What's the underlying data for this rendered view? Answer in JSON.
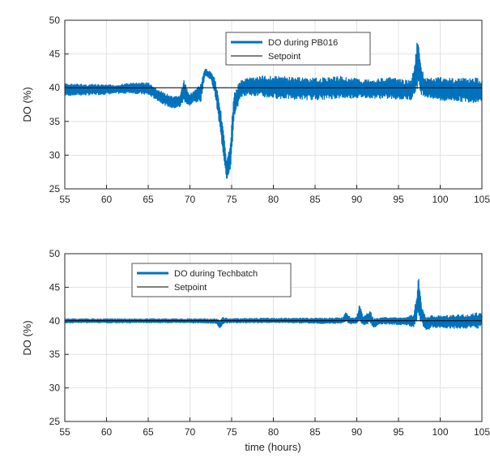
{
  "chart_data": [
    {
      "type": "line",
      "xlim": [
        55,
        105
      ],
      "ylim": [
        25,
        50
      ],
      "xticks": [
        55,
        60,
        65,
        70,
        75,
        80,
        85,
        90,
        95,
        100,
        105
      ],
      "yticks": [
        25,
        30,
        35,
        40,
        45,
        50
      ],
      "xlabel": "",
      "ylabel": "DO (%)",
      "grid": true,
      "legend_position": "top-center",
      "series": [
        {
          "name": "DO during PB016",
          "color": "#0072BD",
          "band": [
            [
              55,
              38.8,
              40.6
            ],
            [
              58,
              38.9,
              40.5
            ],
            [
              61,
              39.1,
              40.4
            ],
            [
              63,
              39.2,
              40.7
            ],
            [
              65,
              38.9,
              40.8
            ],
            [
              66,
              38.2,
              39.8
            ],
            [
              67,
              37.4,
              39.2
            ],
            [
              68,
              36.9,
              38.6
            ],
            [
              68.8,
              37.1,
              38.9
            ],
            [
              69.3,
              38.0,
              41.2
            ],
            [
              69.8,
              37.2,
              39.2
            ],
            [
              70.5,
              37.8,
              39.5
            ],
            [
              71.3,
              37.9,
              40.6
            ],
            [
              71.8,
              41.8,
              42.8
            ],
            [
              72.5,
              41.2,
              42.4
            ],
            [
              73.0,
              39.0,
              41.5
            ],
            [
              73.5,
              34.5,
              38.5
            ],
            [
              74.0,
              30.0,
              34.0
            ],
            [
              74.4,
              26.4,
              29.0
            ],
            [
              74.8,
              27.0,
              31.5
            ],
            [
              75.3,
              35.0,
              39.5
            ],
            [
              76.0,
              38.5,
              41.0
            ],
            [
              77,
              39.0,
              41.5
            ],
            [
              79,
              38.5,
              41.8
            ],
            [
              82,
              38.3,
              41.6
            ],
            [
              85,
              38.2,
              41.4
            ],
            [
              88,
              38.4,
              41.7
            ],
            [
              91,
              38.5,
              41.2
            ],
            [
              94,
              38.3,
              41.5
            ],
            [
              96.5,
              38.2,
              41.0
            ],
            [
              97.0,
              39.0,
              44.0
            ],
            [
              97.3,
              40.0,
              48.3
            ],
            [
              97.7,
              39.0,
              43.0
            ],
            [
              98.3,
              38.6,
              41.4
            ],
            [
              100,
              38.0,
              41.6
            ],
            [
              102,
              38.0,
              41.4
            ],
            [
              104,
              37.8,
              41.5
            ],
            [
              105,
              38.0,
              41.3
            ]
          ]
        },
        {
          "name": "Setpoint",
          "color": "#000000",
          "x": [
            55,
            105
          ],
          "y": [
            40,
            40
          ]
        }
      ]
    },
    {
      "type": "line",
      "xlim": [
        55,
        105
      ],
      "ylim": [
        25,
        50
      ],
      "xticks": [
        55,
        60,
        65,
        70,
        75,
        80,
        85,
        90,
        95,
        100,
        105
      ],
      "yticks": [
        25,
        30,
        35,
        40,
        45,
        50
      ],
      "xlabel": "time (hours)",
      "ylabel": "DO (%)",
      "grid": true,
      "legend_position": "top-left",
      "series": [
        {
          "name": "DO during Techbatch",
          "color": "#0072BD",
          "band": [
            [
              55,
              39.7,
              40.3
            ],
            [
              60,
              39.7,
              40.3
            ],
            [
              65,
              39.7,
              40.3
            ],
            [
              70,
              39.7,
              40.3
            ],
            [
              73.2,
              39.6,
              40.3
            ],
            [
              73.6,
              38.8,
              40.1
            ],
            [
              74.0,
              39.6,
              40.6
            ],
            [
              74.5,
              39.7,
              40.3
            ],
            [
              78,
              39.7,
              40.4
            ],
            [
              82,
              39.7,
              40.4
            ],
            [
              86,
              39.6,
              40.4
            ],
            [
              88.3,
              39.6,
              40.5
            ],
            [
              88.7,
              39.8,
              41.3
            ],
            [
              89.3,
              39.5,
              40.4
            ],
            [
              90.0,
              39.6,
              40.6
            ],
            [
              90.3,
              40.0,
              42.4
            ],
            [
              90.8,
              39.4,
              40.6
            ],
            [
              91.6,
              39.5,
              41.6
            ],
            [
              92.0,
              38.9,
              40.3
            ],
            [
              93,
              39.5,
              40.5
            ],
            [
              96,
              39.4,
              40.5
            ],
            [
              96.8,
              39.0,
              41.0
            ],
            [
              97.2,
              40.0,
              44.0
            ],
            [
              97.4,
              40.5,
              46.6
            ],
            [
              97.8,
              39.5,
              42.0
            ],
            [
              98.3,
              38.4,
              40.5
            ],
            [
              99,
              39.0,
              40.8
            ],
            [
              101,
              38.9,
              40.8
            ],
            [
              103,
              38.8,
              41.0
            ],
            [
              104.6,
              38.9,
              41.2
            ],
            [
              105,
              39.5,
              41.0
            ]
          ]
        },
        {
          "name": "Setpoint",
          "color": "#000000",
          "x": [
            55,
            105
          ],
          "y": [
            40,
            40
          ]
        }
      ]
    }
  ]
}
